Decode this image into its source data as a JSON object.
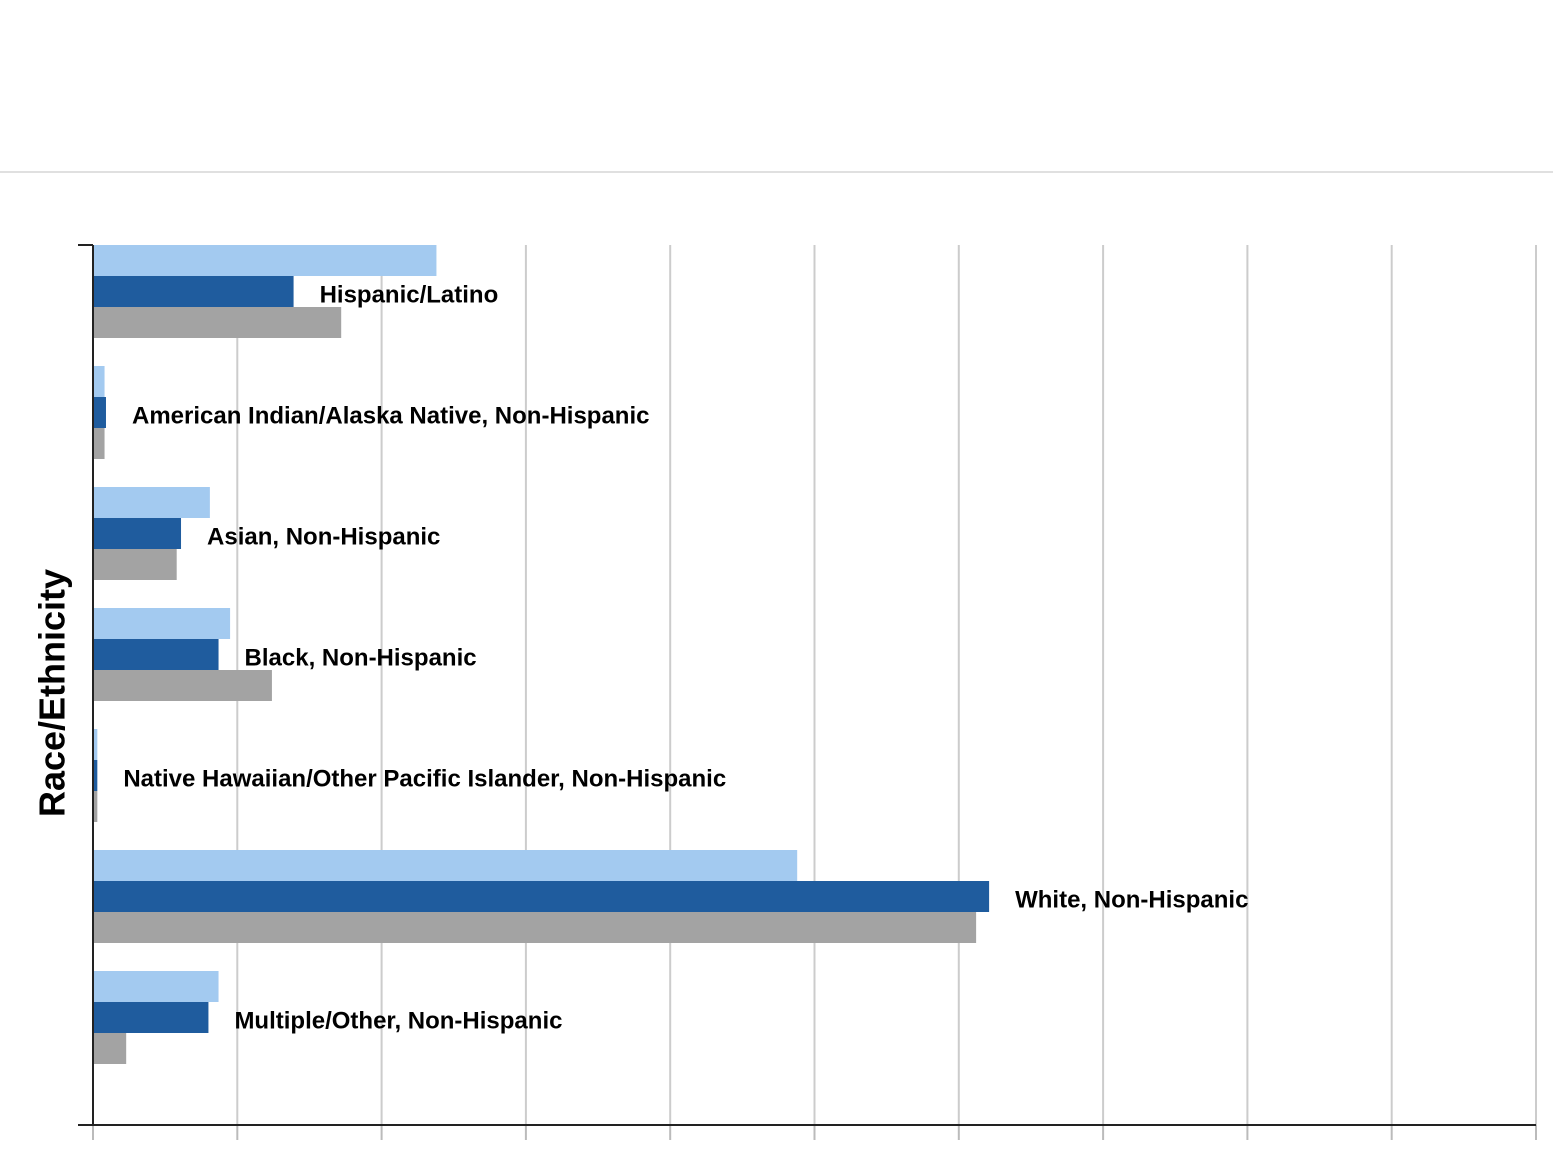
{
  "chart_data": {
    "type": "bar",
    "orientation": "horizontal",
    "y_axis_label": "Race/Ethnicity",
    "categories": [
      "Hispanic/Latino",
      "American Indian/Alaska Native, Non-Hispanic",
      "Asian, Non-Hispanic",
      "Black, Non-Hispanic",
      "Native Hawaiian/Other Pacific Islander, Non-Hispanic",
      "White, Non-Hispanic",
      "Multiple/Other, Non-Hispanic"
    ],
    "series": [
      {
        "color": "#a3caf0",
        "values": [
          23.8,
          0.8,
          8.1,
          9.5,
          0.3,
          48.8,
          8.7
        ]
      },
      {
        "color": "#1f5c9e",
        "values": [
          13.9,
          0.9,
          6.1,
          8.7,
          0.3,
          62.1,
          8.0
        ]
      },
      {
        "color": "#a3a3a3",
        "values": [
          17.2,
          0.8,
          5.8,
          12.4,
          0.3,
          61.2,
          2.3
        ]
      }
    ],
    "xlim": [
      0,
      100
    ],
    "xticks": [
      0,
      10,
      20,
      30,
      40,
      50,
      60,
      70,
      80,
      90,
      100
    ],
    "grid": true
  }
}
